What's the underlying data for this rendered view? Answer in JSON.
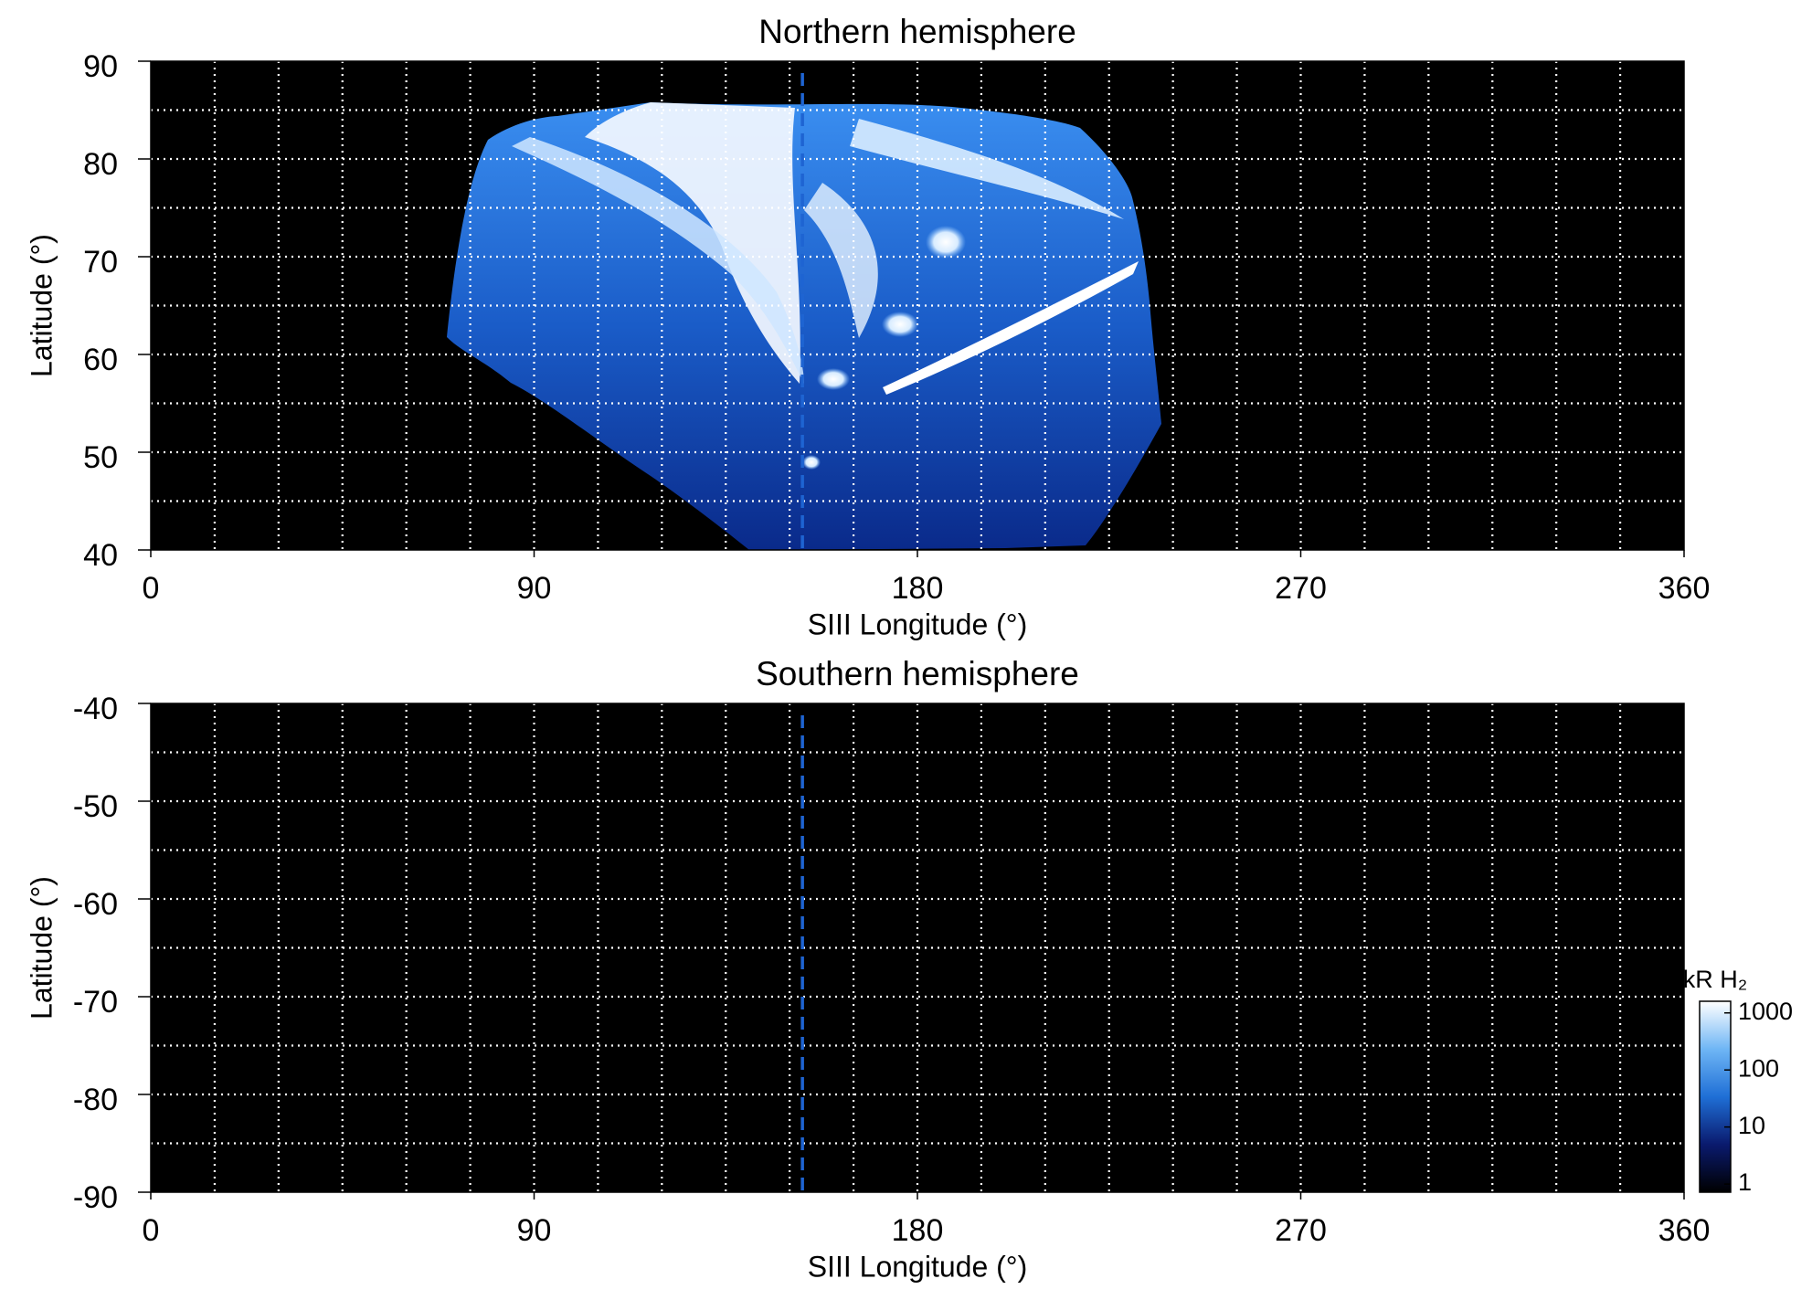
{
  "chart_data": [
    {
      "type": "heatmap",
      "title": "Northern hemisphere",
      "xlabel": "SIII Longitude (°)",
      "ylabel": "Latitude (°)",
      "xlim": [
        0,
        360
      ],
      "xticks": [
        0,
        90,
        180,
        270,
        360
      ],
      "ylim": [
        40,
        90
      ],
      "yticks": [
        40,
        50,
        60,
        70,
        80,
        90
      ],
      "xgrid": [
        15,
        30,
        45,
        60,
        75,
        90,
        105,
        120,
        135,
        150,
        165,
        180,
        195,
        210,
        225,
        240,
        255,
        270,
        285,
        300,
        315,
        330,
        345
      ],
      "ygrid": [
        45,
        50,
        55,
        60,
        65,
        70,
        75,
        80,
        85
      ],
      "reference_x": 153,
      "reference_color": "#1e64d2",
      "background": "#000000"
    },
    {
      "type": "heatmap",
      "title": "Southern hemisphere",
      "xlabel": "SIII Longitude (°)",
      "ylabel": "Latitude (°)",
      "xlim": [
        0,
        360
      ],
      "xticks": [
        0,
        90,
        180,
        270,
        360
      ],
      "ylim": [
        -90,
        -40
      ],
      "yticks": [
        -40,
        -50,
        -60,
        -70,
        -80,
        -90
      ],
      "xgrid": [
        15,
        30,
        45,
        60,
        75,
        90,
        105,
        120,
        135,
        150,
        165,
        180,
        195,
        210,
        225,
        240,
        255,
        270,
        285,
        300,
        315,
        330,
        345
      ],
      "ygrid": [
        -85,
        -80,
        -75,
        -70,
        -65,
        -60,
        -55,
        -50,
        -45
      ],
      "reference_x": 153,
      "reference_color": "#1e64d2",
      "background": "#000000"
    },
    {
      "type": "colorbar",
      "label": "kR H₂",
      "log": true,
      "lim": [
        0.72,
        1600
      ],
      "ticks": [
        1,
        10,
        100,
        1000
      ],
      "colors": [
        "#000000",
        "#0a1a6e",
        "#1f6fd6",
        "#6fb6f5",
        "#ffffff"
      ]
    }
  ]
}
